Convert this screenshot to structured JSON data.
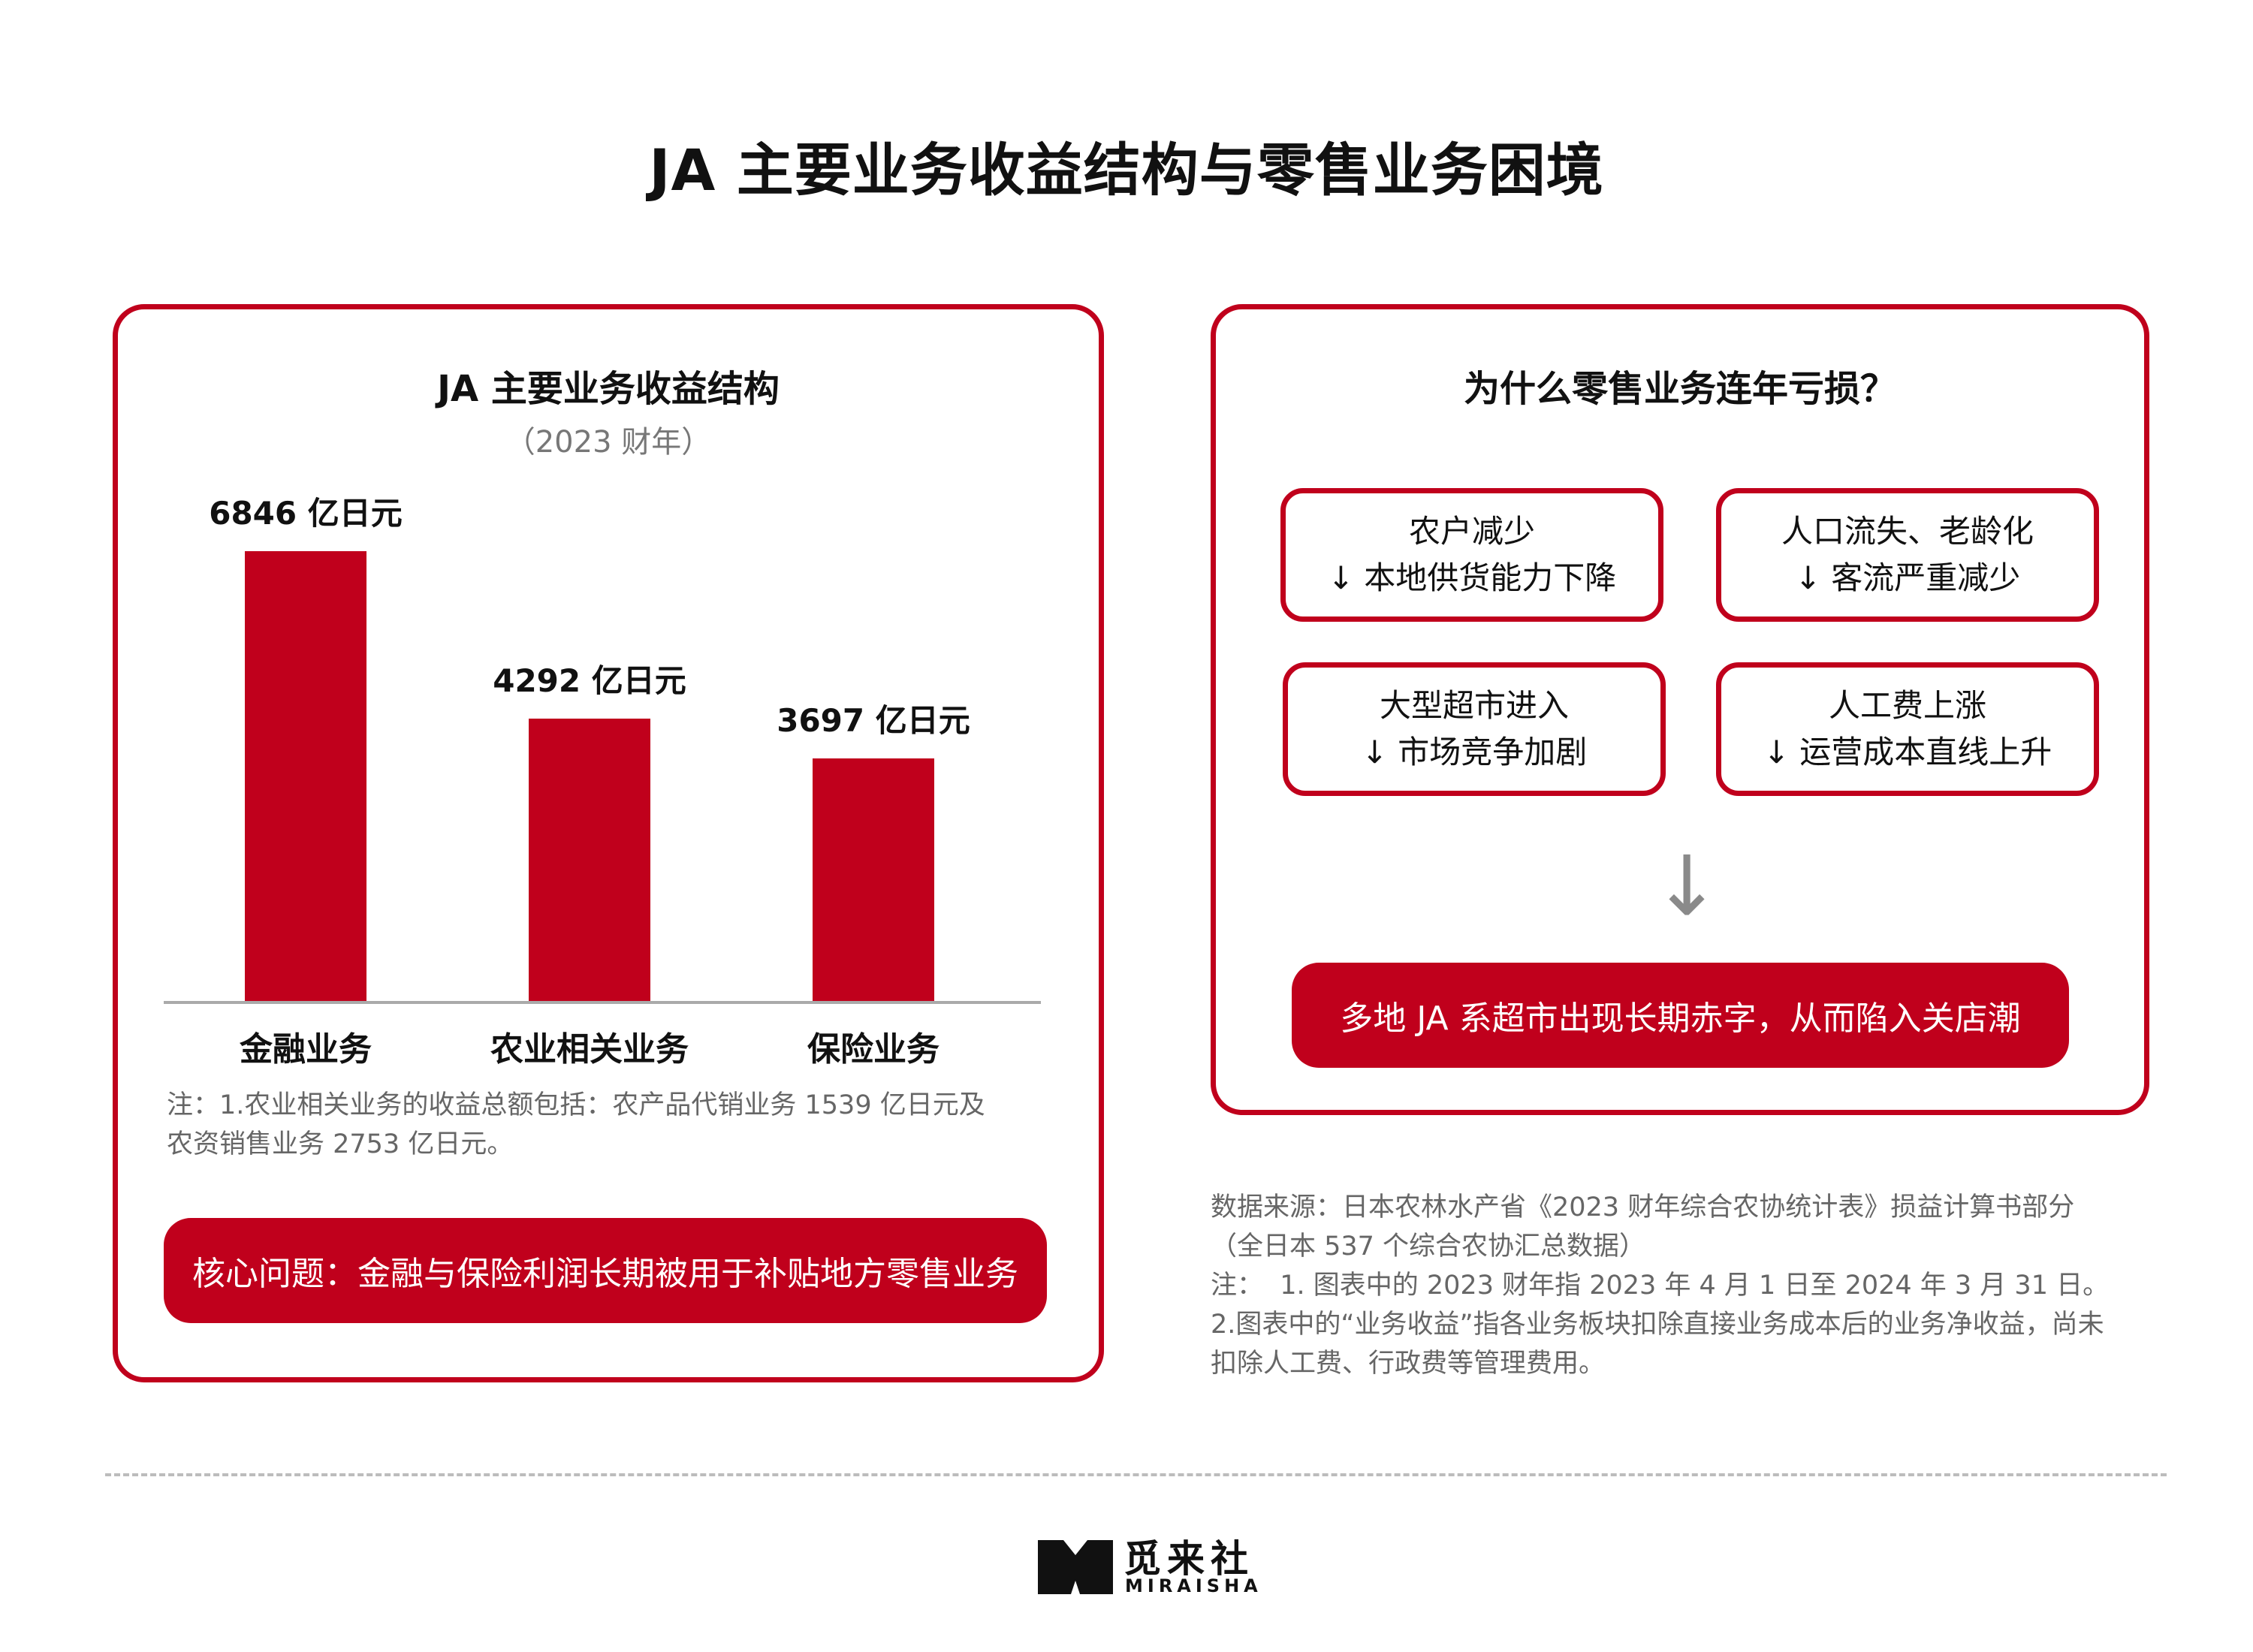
{
  "title": "JA 主要业务收益结构与零售业务困境",
  "left_panel": {
    "title": "JA 主要业务收益结构",
    "subtitle": "（2023 财年）",
    "note_line1": "注：1.农业相关业务的收益总额包括：农产品代销业务 1539 亿日元及",
    "note_line2": "农资销售业务 2753 亿日元。",
    "banner": "核心问题：金融与保险利润长期被用于补贴地方零售业务"
  },
  "chart_data": {
    "type": "bar",
    "title": "JA 主要业务收益结构",
    "subtitle": "（2023 财年）",
    "categories": [
      "金融业务",
      "农业相关业务",
      "保险业务"
    ],
    "values": [
      6846,
      4292,
      3697
    ],
    "value_labels": [
      "6846 亿日元",
      "4292 亿日元",
      "3697 亿日元"
    ],
    "unit": "亿日元",
    "ylim": [
      0,
      7600
    ],
    "color": "#c0001c",
    "grid": false,
    "xlabel": "",
    "ylabel": ""
  },
  "right_panel": {
    "title": "为什么零售业务连年亏损？",
    "reasons": [
      {
        "line1": "农户减少",
        "line2": "↓ 本地供货能力下降"
      },
      {
        "line1": "人口流失、老龄化",
        "line2": "↓ 客流严重减少"
      },
      {
        "line1": "大型超市进入",
        "line2": "↓ 市场竞争加剧"
      },
      {
        "line1": "人工费上涨",
        "line2": "↓ 运营成本直线上升"
      }
    ],
    "arrow": "↓",
    "conclusion": "多地 JA 系超市出现长期赤字，从而陷入关店潮"
  },
  "source": {
    "line1": "数据来源：日本农林水产省《2023 财年综合农协统计表》损益计算书部分",
    "line2": "（全日本 537 个综合农协汇总数据）",
    "line3": "注：  1. 图表中的 2023 财年指 2023 年 4 月 1 日至 2024 年 3 月 31 日。",
    "line4": "2.图表中的“业务收益”指各业务板块扣除直接业务成本后的业务净收益，尚未",
    "line5": "扣除人工费、行政费等管理费用。"
  },
  "logo": {
    "cn": "觅来社",
    "en": "MIRAISHA",
    "icon": "book-icon"
  },
  "colors": {
    "accent": "#c0001c",
    "axis": "#aaaaaa",
    "note": "#666666"
  }
}
